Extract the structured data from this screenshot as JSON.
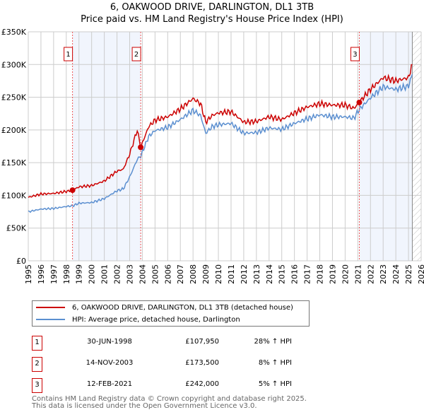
{
  "chart_data": {
    "type": "line",
    "title": "6, OAKWOOD DRIVE, DARLINGTON, DL1 3TB",
    "subtitle": "Price paid vs. HM Land Registry's House Price Index (HPI)",
    "ylim": [
      0,
      350000
    ],
    "xlim": [
      1995,
      2026
    ],
    "yticks": [
      {
        "v": 0,
        "label": "£0"
      },
      {
        "v": 50000,
        "label": "£50K"
      },
      {
        "v": 100000,
        "label": "£100K"
      },
      {
        "v": 150000,
        "label": "£150K"
      },
      {
        "v": 200000,
        "label": "£200K"
      },
      {
        "v": 250000,
        "label": "£250K"
      },
      {
        "v": 300000,
        "label": "£300K"
      },
      {
        "v": 350000,
        "label": "£350K"
      }
    ],
    "xticks": [
      "1995",
      "1996",
      "1997",
      "1998",
      "1999",
      "2000",
      "2001",
      "2002",
      "2003",
      "2004",
      "2005",
      "2006",
      "2007",
      "2008",
      "2009",
      "2010",
      "2011",
      "2012",
      "2013",
      "2014",
      "2015",
      "2016",
      "2017",
      "2018",
      "2019",
      "2020",
      "2021",
      "2022",
      "2023",
      "2024",
      "2025",
      "2026"
    ],
    "grid": true,
    "series": [
      {
        "name": "6, OAKWOOD DRIVE, DARLINGTON, DL1 3TB (detached house)",
        "color": "#cc0000",
        "x": [
          1995,
          1996,
          1997,
          1998,
          1998.5,
          1999,
          2000,
          2001,
          2002,
          2002.5,
          2003,
          2003.6,
          2003.87,
          2004.5,
          2005,
          2006,
          2007,
          2008,
          2008.6,
          2009,
          2009.5,
          2010,
          2011,
          2012,
          2013,
          2014,
          2015,
          2016,
          2017,
          2018,
          2019,
          2020,
          2020.7,
          2021.1,
          2022,
          2023,
          2024,
          2025,
          2025.3
        ],
        "y": [
          97000,
          102000,
          103000,
          106000,
          107950,
          113000,
          115000,
          122000,
          137000,
          140000,
          163000,
          200000,
          173500,
          205000,
          215000,
          220000,
          232000,
          248000,
          240000,
          212000,
          222000,
          226000,
          228000,
          212000,
          213000,
          220000,
          216000,
          226000,
          235000,
          240000,
          238000,
          238000,
          233000,
          242000,
          262000,
          280000,
          275000,
          280000,
          300000
        ]
      },
      {
        "name": "HPI: Average price, detached house, Darlington",
        "color": "#5b8fd0",
        "x": [
          1995,
          1996,
          1997,
          1998,
          1998.5,
          1999,
          2000,
          2001,
          2002,
          2002.5,
          2003,
          2003.6,
          2003.87,
          2004.5,
          2005,
          2006,
          2007,
          2008,
          2008.6,
          2009,
          2009.5,
          2010,
          2011,
          2012,
          2013,
          2014,
          2015,
          2016,
          2017,
          2018,
          2019,
          2020,
          2020.7,
          2021.1,
          2022,
          2023,
          2024,
          2025,
          2025.3
        ],
        "y": [
          75000,
          79000,
          80000,
          83000,
          84000,
          88000,
          89000,
          95000,
          107000,
          110000,
          128000,
          155000,
          160000,
          190000,
          199000,
          204000,
          216000,
          230000,
          222000,
          195000,
          205000,
          208000,
          210000,
          195000,
          196000,
          203000,
          201000,
          210000,
          217000,
          223000,
          220000,
          220000,
          218000,
          231000,
          249000,
          266000,
          262000,
          267000,
          285000
        ]
      }
    ],
    "hatch_from": 2025.3,
    "sales": [
      {
        "label": "1",
        "x": 1998.49,
        "y": 107950,
        "shade_to": 2003.87
      },
      {
        "label": "2",
        "x": 2003.87,
        "y": 173500
      },
      {
        "label": "3",
        "x": 2021.12,
        "y": 242000,
        "shade_to": 2025.3
      }
    ],
    "legend_position": "bottom"
  },
  "sales_table": [
    {
      "num": "1",
      "date": "30-JUN-1998",
      "price": "£107,950",
      "hpi": "28% ↑ HPI"
    },
    {
      "num": "2",
      "date": "14-NOV-2003",
      "price": "£173,500",
      "hpi": "8% ↑ HPI"
    },
    {
      "num": "3",
      "date": "12-FEB-2021",
      "price": "£242,000",
      "hpi": "5% ↑ HPI"
    }
  ],
  "footer": {
    "line1": "Contains HM Land Registry data © Crown copyright and database right 2025.",
    "line2": "This data is licensed under the Open Government Licence v3.0."
  }
}
